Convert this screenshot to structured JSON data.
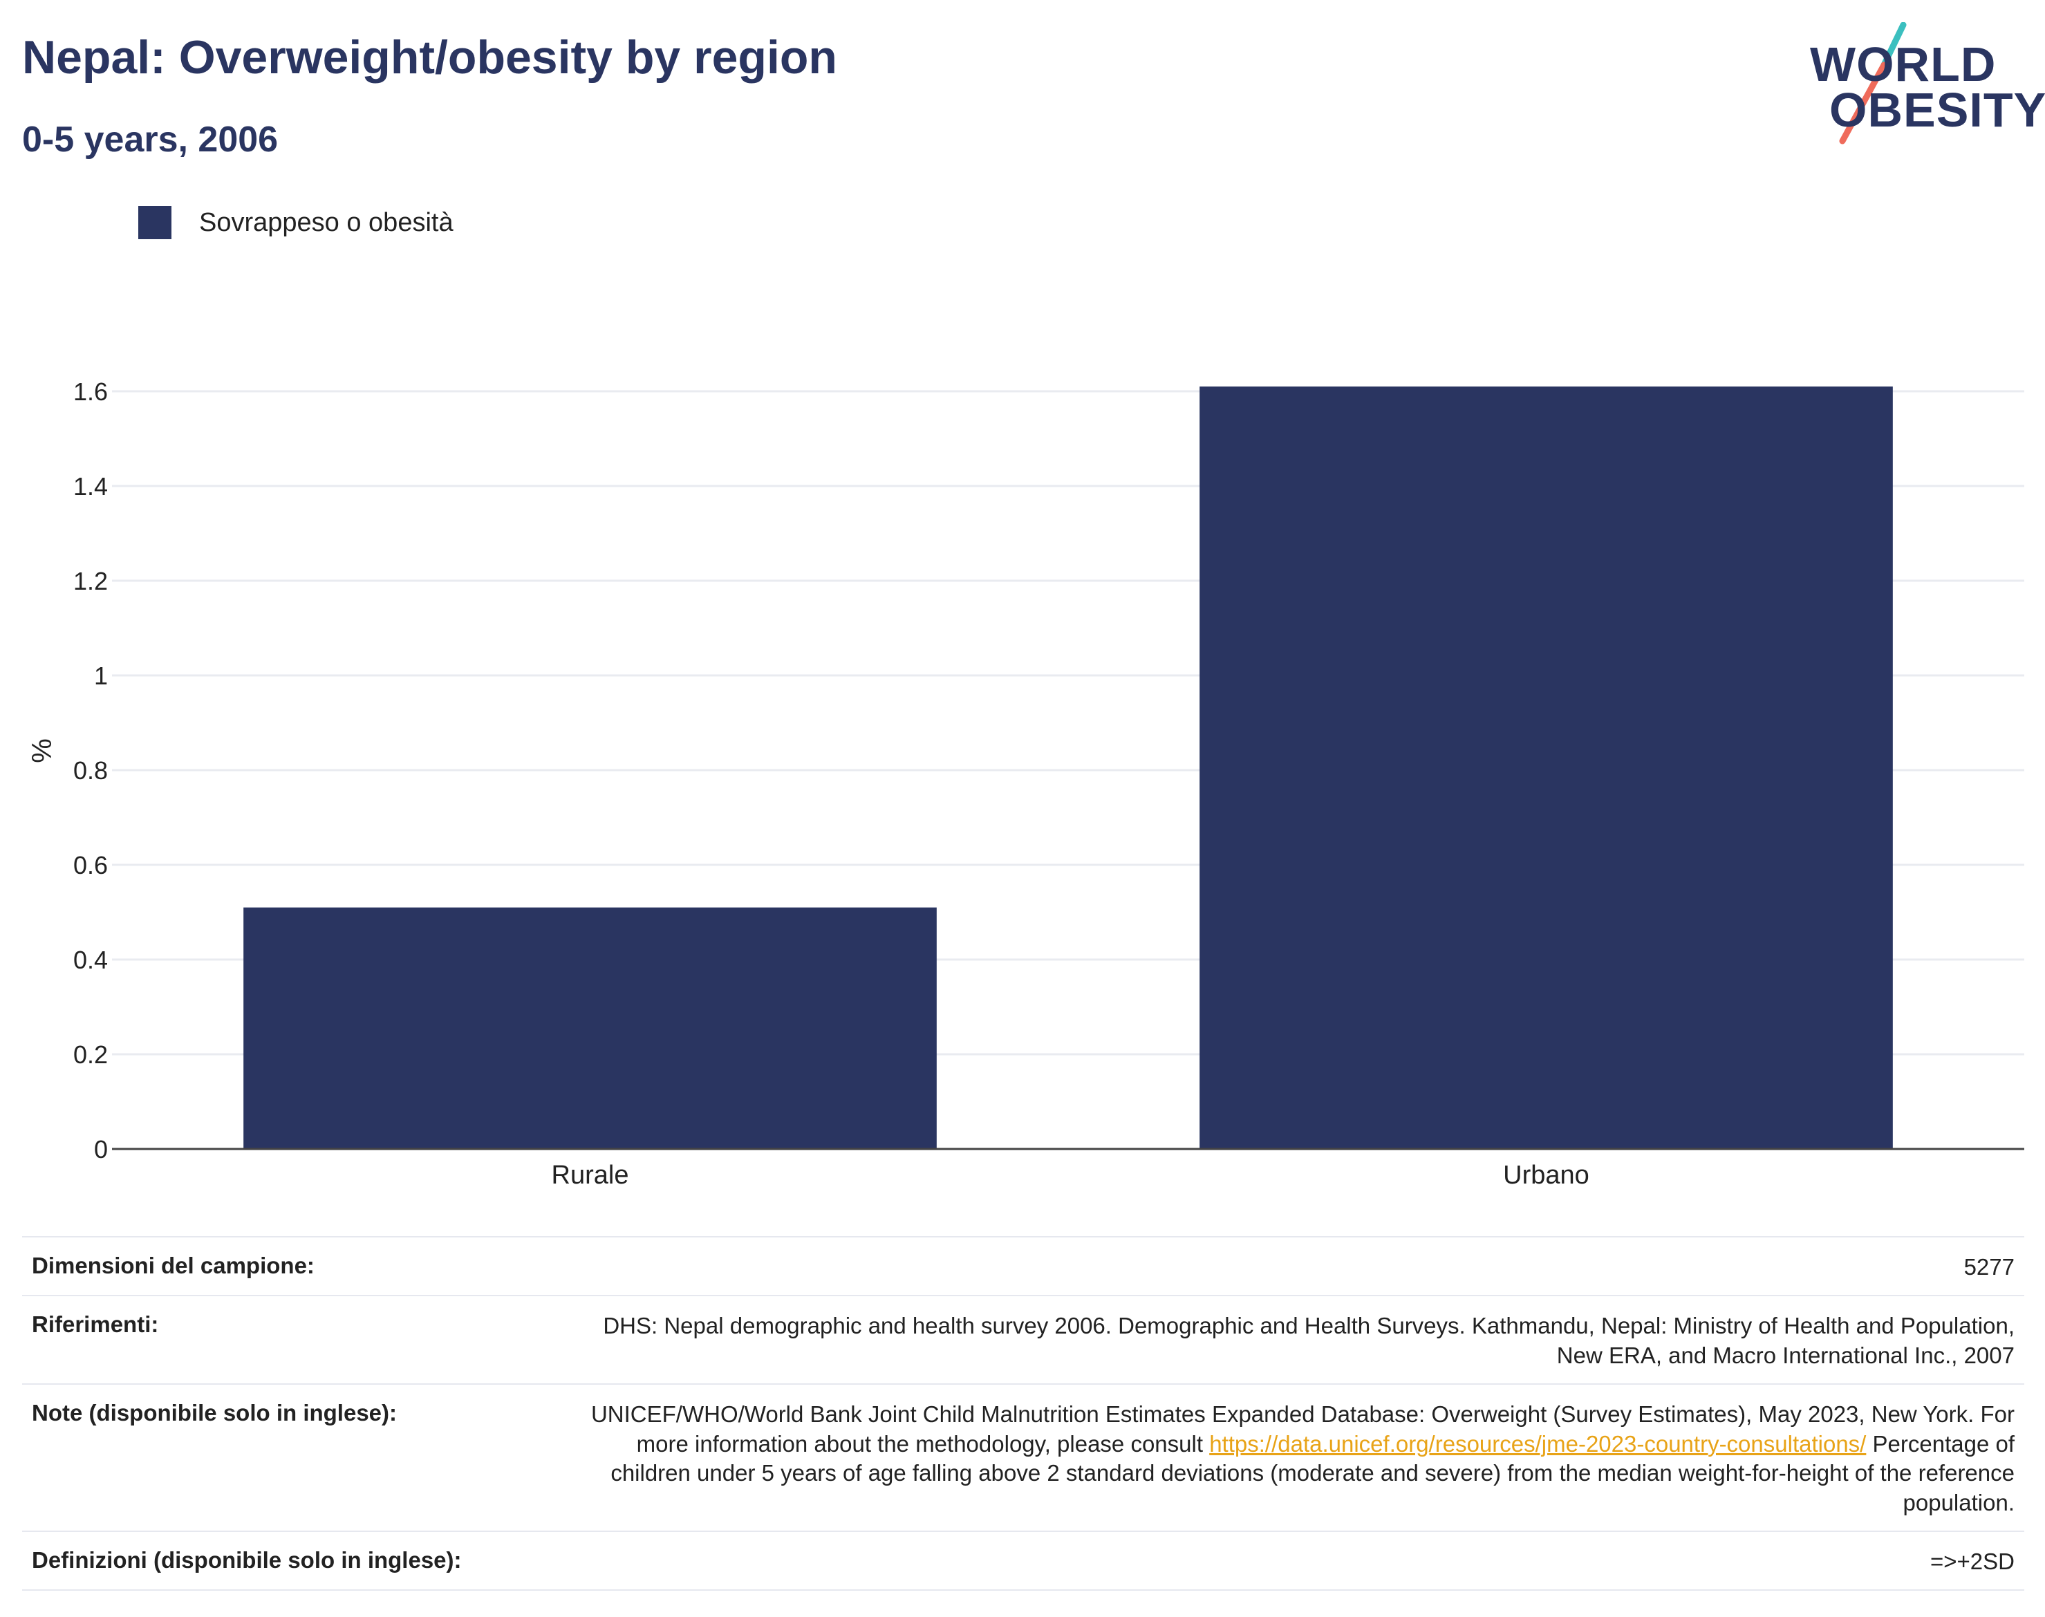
{
  "header": {
    "title": "Nepal: Overweight/obesity by region",
    "subtitle": "0-5 years, 2006"
  },
  "logo": {
    "line1": "WORLD",
    "line2": "OBESITY",
    "colors": {
      "text": "#2a3561",
      "slash_top": "#3bbfbf",
      "slash_bottom": "#ef6b5b"
    }
  },
  "legend": {
    "label": "Sovrappeso o obesità",
    "color": "#2a3561"
  },
  "chart_data": {
    "type": "bar",
    "categories": [
      "Rurale",
      "Urbano"
    ],
    "series": [
      {
        "name": "Sovrappeso o obesità",
        "values": [
          0.51,
          1.61
        ],
        "color": "#2a3561"
      }
    ],
    "ylabel": "%",
    "ylim": [
      0,
      1.6
    ],
    "yticks": [
      0,
      0.2,
      0.4,
      0.6,
      0.8,
      1,
      1.2,
      1.4,
      1.6
    ],
    "ytick_labels": [
      "0",
      "0.2",
      "0.4",
      "0.6",
      "0.8",
      "1",
      "1.2",
      "1.4",
      "1.6"
    ],
    "grid": true
  },
  "info": {
    "sample_size_label": "Dimensioni del campione:",
    "sample_size_value": "5277",
    "references_label": "Riferimenti:",
    "references_value": "DHS: Nepal demographic and health survey 2006. Demographic and Health Surveys. Kathmandu, Nepal: Ministry of Health and Population, New ERA, and Macro International Inc., 2007",
    "notes_label": "Note (disponibile solo in inglese):",
    "notes_text_1": "UNICEF/WHO/World Bank Joint Child Malnutrition Estimates Expanded Database: Overweight (Survey Estimates), May 2023, New York. For more information about the methodology, please consult ",
    "notes_link": "https://data.unicef.org/resources/jme-2023-country-consultations/",
    "notes_text_2": " Percentage of children under 5 years of age falling above 2 standard deviations (moderate and severe) from the median weight-for-height of the reference population.",
    "definitions_label": "Definizioni (disponibile solo in inglese):",
    "definitions_value": "=>+2SD"
  }
}
